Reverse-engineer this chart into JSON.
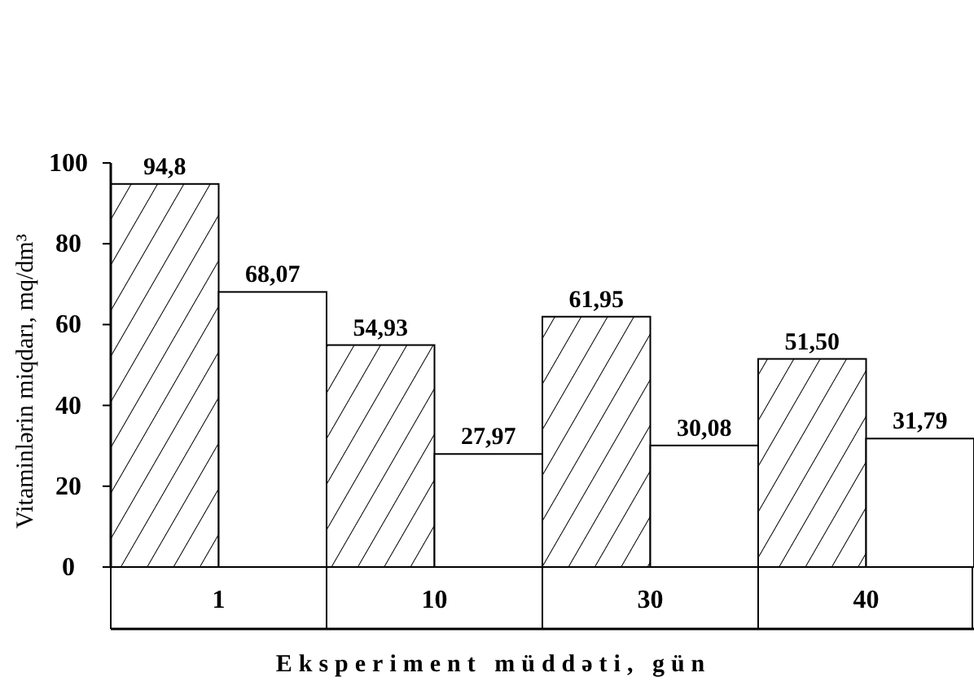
{
  "chart_data": {
    "type": "bar",
    "xlabel": "Eksperiment müddəti, gün",
    "ylabel": "Vitaminlərin miqdarı, mq/dm³",
    "categories": [
      "1",
      "10",
      "30",
      "40"
    ],
    "ylim": [
      0,
      100
    ],
    "yticks": [
      0,
      20,
      40,
      60,
      80,
      100
    ],
    "grid": false,
    "series": [
      {
        "color": "#000000",
        "values": [
          94.8,
          54.93,
          61.95,
          51.5
        ],
        "value_labels": [
          "94,8",
          "54,93",
          "61,95",
          "51,50"
        ]
      },
      {
        "color": "#ffffff",
        "values": [
          68.07,
          27.97,
          30.08,
          31.79
        ],
        "value_labels": [
          "68,07",
          "27,97",
          "30,08",
          "31,79"
        ]
      }
    ]
  }
}
